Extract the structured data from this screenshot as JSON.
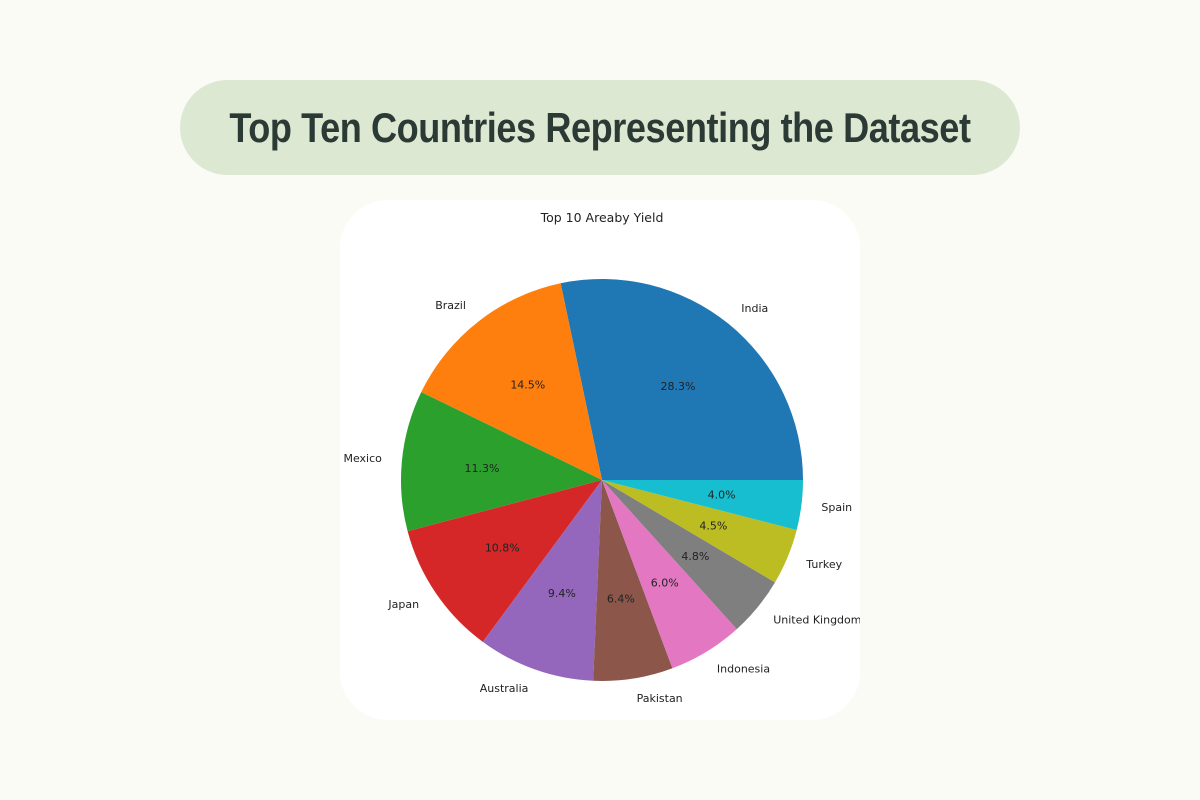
{
  "page": {
    "title": "Top Ten Countries Representing the Dataset"
  },
  "chart_data": {
    "type": "pie",
    "title": "Top 10 Areaby Yield",
    "start_angle": 0,
    "direction": "counterclockwise",
    "slices": [
      {
        "label": "India",
        "value": 28.3,
        "pct_label": "28.3%",
        "color": "#1f77b4"
      },
      {
        "label": "Brazil",
        "value": 14.5,
        "pct_label": "14.5%",
        "color": "#ff7f0e"
      },
      {
        "label": "Mexico",
        "value": 11.3,
        "pct_label": "11.3%",
        "color": "#2ca02c"
      },
      {
        "label": "Japan",
        "value": 10.8,
        "pct_label": "10.8%",
        "color": "#d62728"
      },
      {
        "label": "Australia",
        "value": 9.4,
        "pct_label": "9.4%",
        "color": "#9467bd"
      },
      {
        "label": "Pakistan",
        "value": 6.4,
        "pct_label": "6.4%",
        "color": "#8c564b"
      },
      {
        "label": "Indonesia",
        "value": 6.0,
        "pct_label": "6.0%",
        "color": "#e377c2"
      },
      {
        "label": "United Kingdom",
        "value": 4.8,
        "pct_label": "4.8%",
        "color": "#7f7f7f"
      },
      {
        "label": "Turkey",
        "value": 4.5,
        "pct_label": "4.5%",
        "color": "#bcbd22"
      },
      {
        "label": "Spain",
        "value": 4.0,
        "pct_label": "4.0%",
        "color": "#17becf"
      }
    ]
  }
}
